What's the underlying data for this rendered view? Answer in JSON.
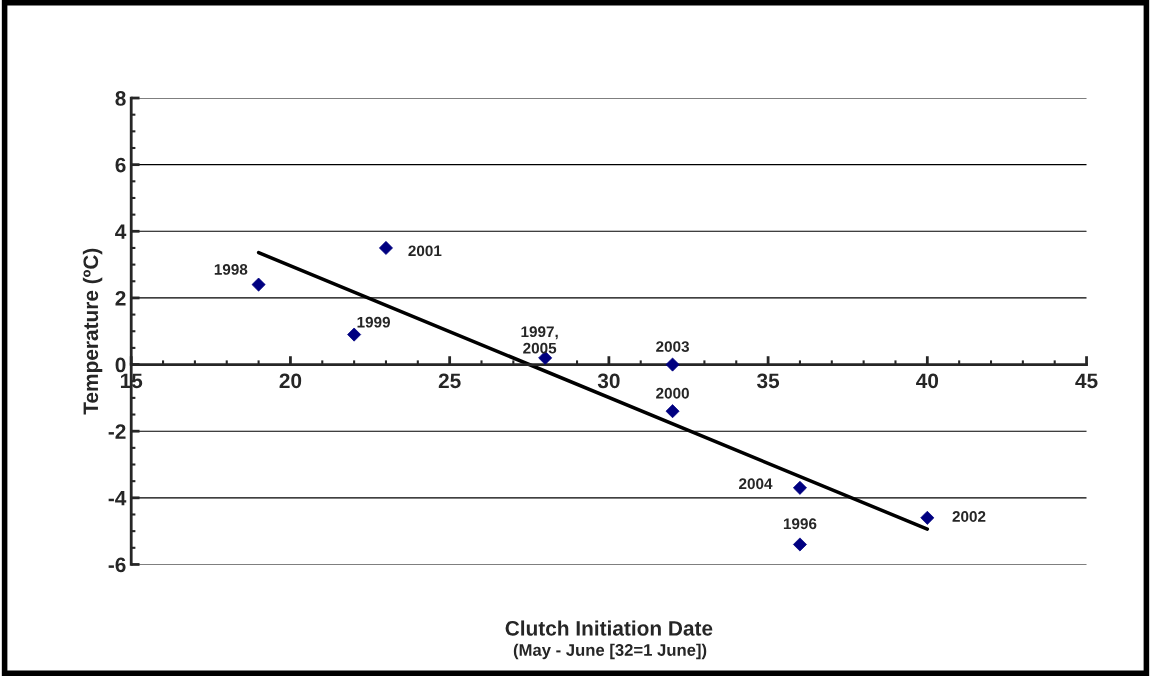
{
  "chart_data": {
    "type": "scatter",
    "xlabel": "Clutch Initiation Date",
    "ylabel": "Temperature (ºC)",
    "xlim": [
      15,
      45
    ],
    "xticks": [
      15,
      20,
      25,
      30,
      35,
      40,
      45
    ],
    "ylim": [
      -6,
      8
    ],
    "yticks": [
      -6,
      -4,
      -2,
      0,
      2,
      4,
      6,
      8
    ],
    "grid": "y",
    "legend": false,
    "series": [
      {
        "color": "#000080",
        "x": [
          19,
          22,
          23,
          28,
          32,
          32,
          36,
          36,
          40
        ],
        "marker": "diamond",
        "values": [
          2.4,
          0.9,
          3.5,
          0.2,
          0,
          -1.4,
          -3.7,
          -5.4,
          -4.6
        ]
      },
      {
        "type": "line",
        "marker": "none",
        "color": "#000000",
        "x": [
          19,
          40
        ],
        "values": [
          3.36,
          -4.94
        ]
      }
    ],
    "annotations": [
      "(May - June [32=1 June])",
      {
        "text": "1998",
        "x": 19,
        "y": 2.4
      },
      {
        "text": "1999",
        "x": 22,
        "y": 0.9
      },
      {
        "text": "2001",
        "x": 23,
        "y": 3.5
      },
      {
        "text": "1997,\n2005",
        "x": 28,
        "y": 0.2
      },
      {
        "text": "2003",
        "x": 32,
        "y": 0
      },
      {
        "text": "2000",
        "x": 32,
        "y": -1.4
      },
      {
        "text": "2004",
        "x": 36,
        "y": -3.7
      },
      {
        "text": "1996",
        "x": 36,
        "y": -5.4
      },
      {
        "text": "2002",
        "x": 40,
        "y": -4.6
      }
    ]
  }
}
